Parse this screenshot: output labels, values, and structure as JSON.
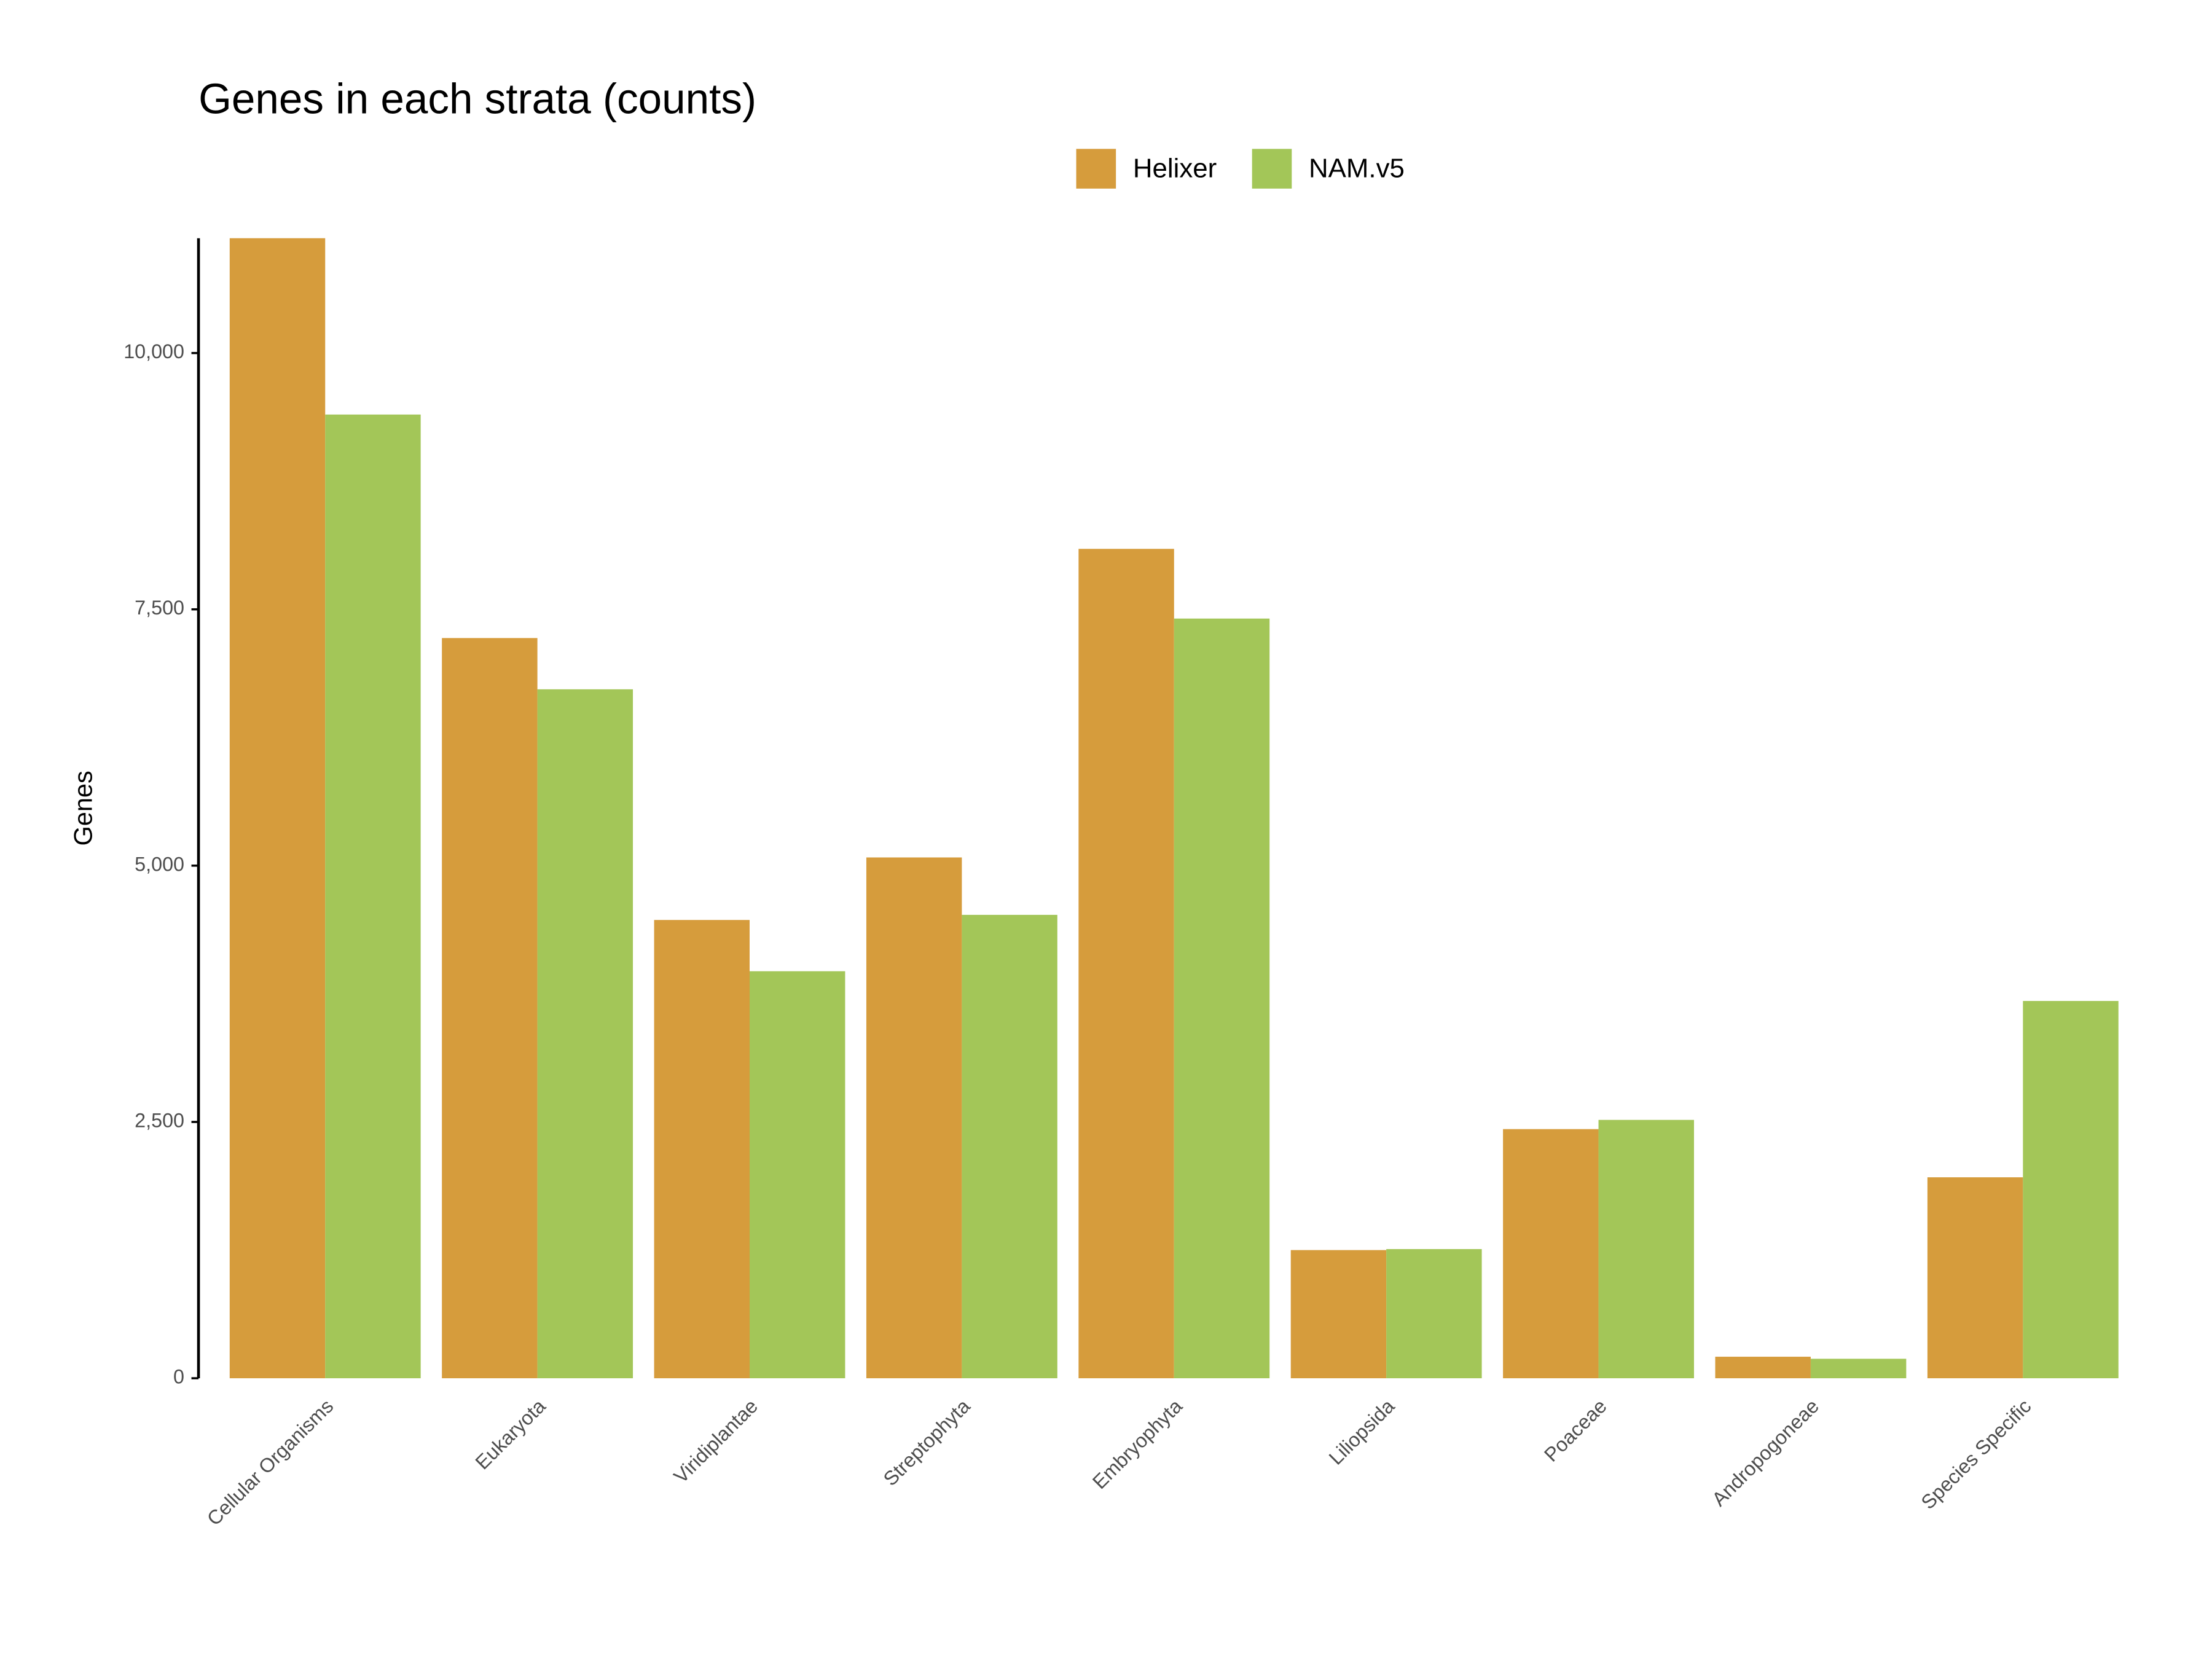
{
  "chart_data": {
    "type": "bar",
    "title": "Genes in each strata (counts)",
    "y_label": "Genes",
    "categories": [
      "Cellular Organisms",
      "Eukaryota",
      "Viridiplantae",
      "Streptophyta",
      "Embryophyta",
      "Liliopsida",
      "Poaceae",
      "Andropogoneae",
      "Species Specific"
    ],
    "series": [
      {
        "name": "Helixer",
        "color": "#d69c3c",
        "values": [
          11120,
          7220,
          4470,
          5080,
          8090,
          1250,
          2430,
          210,
          1960
        ]
      },
      {
        "name": "NAM.v5",
        "color": "#a3c658",
        "values": [
          9400,
          6720,
          3970,
          4520,
          7410,
          1260,
          2520,
          190,
          3680
        ]
      }
    ],
    "ylim": [
      0,
      11120
    ],
    "yticks": [
      0,
      {
        "value": 2500,
        "label": "2,500"
      },
      {
        "value": 5000,
        "label": "5,000"
      },
      {
        "value": 7500,
        "label": "7,500"
      },
      {
        "value": 10000,
        "label": "10,000"
      }
    ],
    "grid": false,
    "legend": "top"
  }
}
